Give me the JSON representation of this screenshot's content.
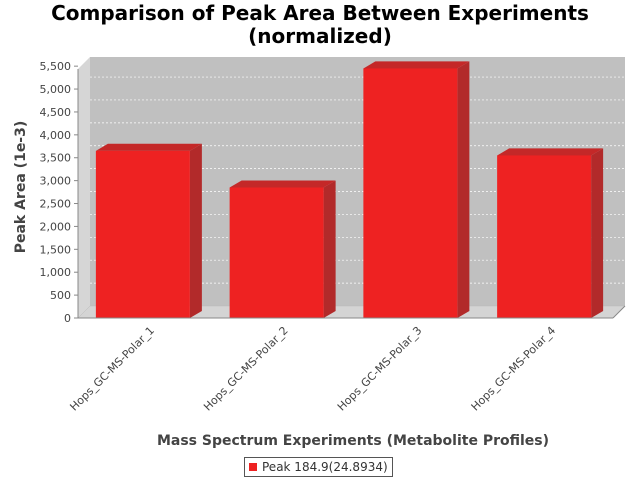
{
  "chart_data": {
    "type": "bar",
    "title_line1": "Comparison of Peak Area Between Experiments",
    "title_line2": "(normalized)",
    "xlabel": "Mass Spectrum Experiments (Metabolite Profiles)",
    "ylabel": "Peak Area (1e-3)",
    "categories": [
      "Hops_GC-MS-Polar_1",
      "Hops_GC-MS-Polar_2",
      "Hops_GC-MS-Polar_3",
      "Hops_GC-MS-Polar_4"
    ],
    "series": [
      {
        "name": "Peak 184.9(24.8934)",
        "values": [
          3650,
          2850,
          5450,
          3550
        ],
        "color": "#ee2222"
      }
    ],
    "ylim": [
      0,
      5700
    ],
    "yticks": [
      0,
      500,
      1000,
      1500,
      2000,
      2500,
      3000,
      3500,
      4000,
      4500,
      5000,
      5500
    ],
    "ytick_labels": [
      "0",
      "500",
      "1,000",
      "1,500",
      "2,000",
      "2,500",
      "3,000",
      "3,500",
      "4,000",
      "4,500",
      "5,000",
      "5,500"
    ],
    "grid": true,
    "three_d": true,
    "plot_background": "#c0c0c0",
    "legend_position": "bottom"
  }
}
